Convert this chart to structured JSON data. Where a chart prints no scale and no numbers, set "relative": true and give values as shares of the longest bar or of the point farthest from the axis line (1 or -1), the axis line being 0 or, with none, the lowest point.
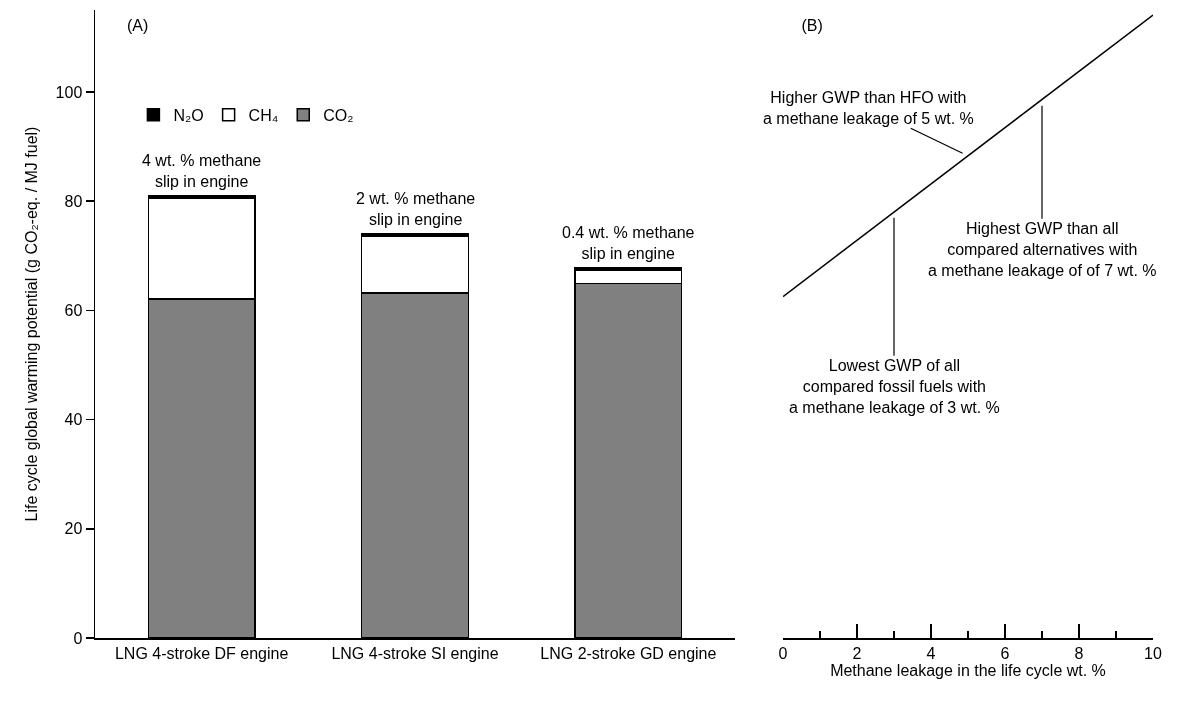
{
  "chart_data": [
    {
      "type": "bar",
      "title": "(A)",
      "ylabel": "Life cycle global warming potential (g CO₂-eq. / MJ fuel)",
      "stacked": true,
      "legend": "top left",
      "categories": [
        "LNG 4-stroke DF engine",
        "LNG 4-stroke SI engine",
        "LNG 2-stroke GD engine"
      ],
      "series": [
        {
          "name": "CO₂",
          "color": "#808080",
          "values": [
            62.1,
            63.2,
            64.9
          ]
        },
        {
          "name": "CH₄",
          "color": "#ffffff",
          "values": [
            18.5,
            10.4,
            2.5
          ]
        },
        {
          "name": "N₂O",
          "color": "#000000",
          "values": [
            0.4,
            0.4,
            0.4
          ]
        }
      ],
      "ylim": [
        0,
        115
      ],
      "yticks": [
        0,
        20,
        40,
        60,
        80,
        100
      ],
      "annotations": [
        {
          "text": "4 wt. % methane\nslip in engine",
          "x": "LNG 4-stroke DF engine",
          "y": 81.0
        },
        {
          "text": "2 wt. % methane\nslip in engine",
          "x": "LNG 4-stroke SI engine",
          "y": 74.0
        },
        {
          "text": "0.4 wt. % methane\nslip in engine",
          "x": "LNG 2-stroke GD engine",
          "y": 67.8
        }
      ]
    },
    {
      "type": "line",
      "title": "(B)",
      "xlabel": "Methane leakage in the life cycle wt. %",
      "tick_labels": "x",
      "relative": true,
      "x": [
        0,
        10
      ],
      "values": [
        0.548,
        1
      ],
      "xlim": [
        0,
        10
      ],
      "xticks": [
        0,
        {
          "value": 1,
          "label": null
        },
        2,
        {
          "value": 3,
          "label": null
        },
        4,
        {
          "value": 5,
          "label": null
        },
        6,
        {
          "value": 7,
          "label": null
        },
        8,
        {
          "value": 9,
          "label": null
        },
        10
      ],
      "annotations": [
        {
          "text": "Higher GWP than HFO with\na methane leakage of 5 wt. %",
          "x": 5,
          "y": 0.774
        },
        {
          "text": "Highest GWP than all\ncompared alternatives with\na methane leakage of of 7 wt. %",
          "x": 7,
          "y": 0.864
        },
        {
          "text": "Lowest GWP of all\ncompared fossil fuels with\na methane leakage of 3 wt. %",
          "x": 3,
          "y": 0.684
        }
      ]
    }
  ]
}
